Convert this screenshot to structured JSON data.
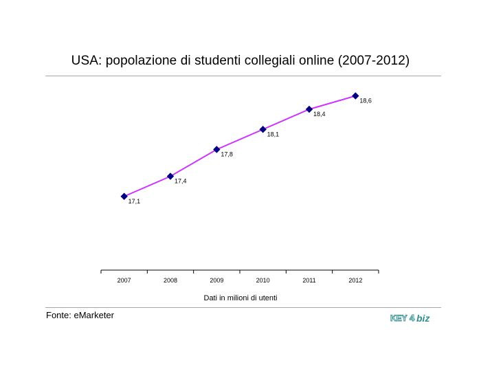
{
  "header": {
    "title": "USA: popolazione di studenti collegiali online (2007-2012)"
  },
  "chart_data": {
    "type": "line",
    "title": "USA: popolazione di studenti collegiali online (2007-2012)",
    "xlabel": "",
    "ylabel": "",
    "categories": [
      "2007",
      "2008",
      "2009",
      "2010",
      "2011",
      "2012"
    ],
    "series": [
      {
        "values": [
          17.1,
          17.4,
          17.8,
          18.1,
          18.4,
          18.6
        ],
        "labels": [
          "17,1",
          "17,4",
          "17,8",
          "18,1",
          "18,4",
          "18,6"
        ]
      }
    ],
    "ylim": [
      16.0,
      18.8
    ],
    "y_axis_visible": false,
    "grid": false,
    "legend": "none",
    "colors": {
      "line": "#cc33ff",
      "marker": "#000080",
      "axis": "#000000"
    }
  },
  "footnote": "Dati in milioni di utenti",
  "source": "Fonte: eMarketer",
  "logo": {
    "text": "KEY4biz",
    "color": "#2f8f8f"
  }
}
